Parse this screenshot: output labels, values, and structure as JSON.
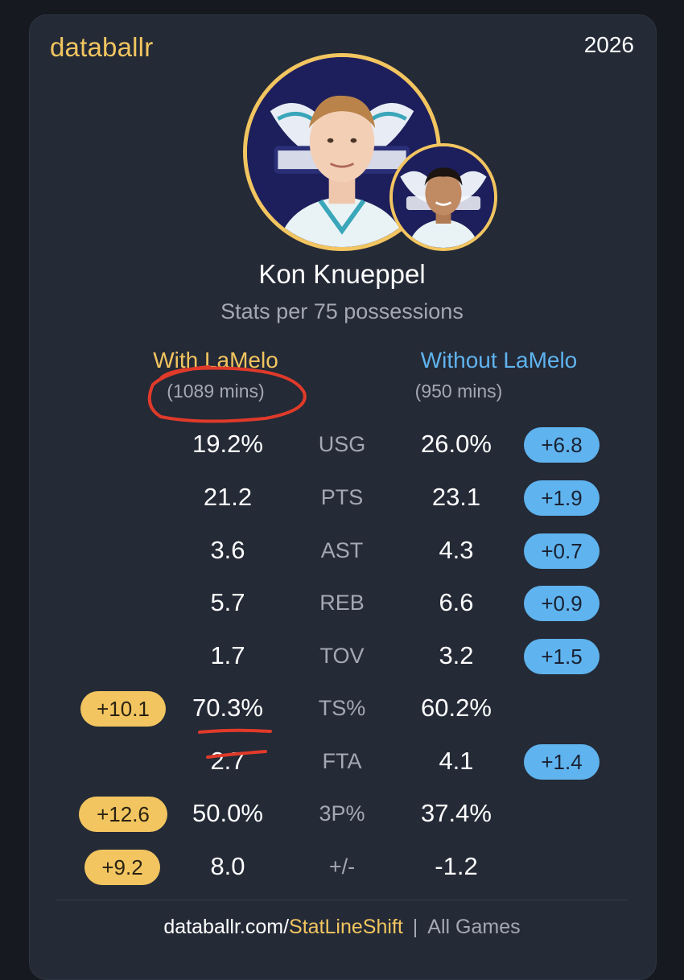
{
  "header": {
    "brand": "databallr",
    "season": "2026"
  },
  "player": {
    "name": "Kon Knueppel",
    "subtitle": "Stats per 75 possessions"
  },
  "columns": {
    "with": {
      "title": "With LaMelo",
      "minutes": "(1089 mins)"
    },
    "without": {
      "title": "Without LaMelo",
      "minutes": "(950 mins)"
    }
  },
  "rows": [
    {
      "label": "USG",
      "with": "19.2%",
      "without": "26.0%",
      "with_diff": "",
      "without_diff": "+6.8"
    },
    {
      "label": "PTS",
      "with": "21.2",
      "without": "23.1",
      "with_diff": "",
      "without_diff": "+1.9"
    },
    {
      "label": "AST",
      "with": "3.6",
      "without": "4.3",
      "with_diff": "",
      "without_diff": "+0.7"
    },
    {
      "label": "REB",
      "with": "5.7",
      "without": "6.6",
      "with_diff": "",
      "without_diff": "+0.9"
    },
    {
      "label": "TOV",
      "with": "1.7",
      "without": "3.2",
      "with_diff": "",
      "without_diff": "+1.5"
    },
    {
      "label": "TS%",
      "with": "70.3%",
      "without": "60.2%",
      "with_diff": "+10.1",
      "without_diff": ""
    },
    {
      "label": "FTA",
      "with": "2.7",
      "without": "4.1",
      "with_diff": "",
      "without_diff": "+1.4"
    },
    {
      "label": "3P%",
      "with": "50.0%",
      "without": "37.4%",
      "with_diff": "+12.6",
      "without_diff": ""
    },
    {
      "label": "+/-",
      "with": "8.0",
      "without": "-1.2",
      "with_diff": "+9.2",
      "without_diff": ""
    }
  ],
  "footer": {
    "domain": "databallr.com/",
    "path": "StatLineShift",
    "separator": "|",
    "scope": "All Games"
  },
  "colors": {
    "background": "#16191f",
    "card": "#242a36",
    "with_accent": "#f2c560",
    "without_accent": "#5fb3ee",
    "muted_text": "#a3a8b3",
    "annotation": "#e03a2a"
  },
  "icons": {
    "main_avatar": "player-photo-avatar",
    "secondary_avatar": "teammate-photo-avatar"
  }
}
